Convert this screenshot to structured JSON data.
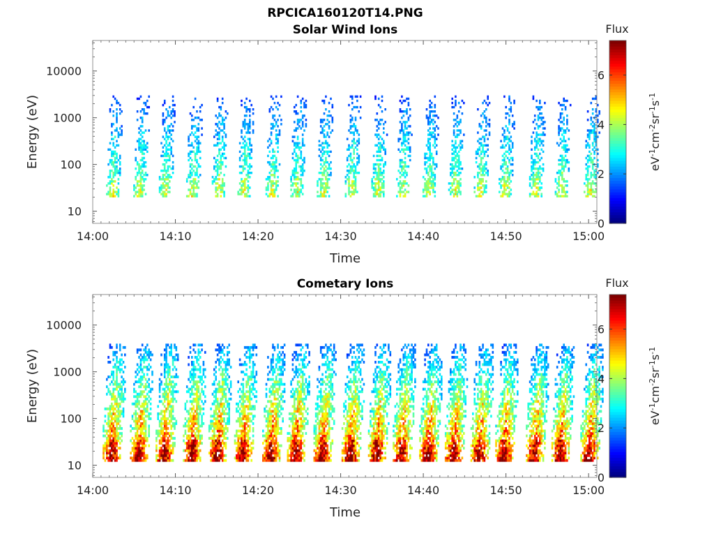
{
  "figure_title": "RPCICA160120T14.PNG",
  "chart_data": [
    {
      "type": "heatmap",
      "title": "Solar Wind Ions",
      "xlabel": "Time",
      "ylabel": "Energy (eV)",
      "x_range": [
        "14:00",
        "15:01"
      ],
      "x_ticks": [
        "14:00",
        "14:10",
        "14:20",
        "14:30",
        "14:40",
        "14:50",
        "15:00"
      ],
      "y_scale": "log",
      "y_range": [
        5.5,
        45000
      ],
      "y_ticks": [
        "10",
        "100",
        "1000",
        "10000"
      ],
      "colorbar": {
        "title": "Flux",
        "label": "eV-1cm-2sr-1s-1",
        "range": [
          0,
          7.4
        ],
        "ticks": [
          "0",
          "2",
          "4",
          "6"
        ],
        "colormap": "jet"
      },
      "approx_peak_flux": 5.5,
      "burst_times_min": [
        2.5,
        5.8,
        8.9,
        12.2,
        15.3,
        18.4,
        21.8,
        24.8,
        28.0,
        31.4,
        34.6,
        37.6,
        40.8,
        43.9,
        47.0,
        50.0,
        53.7,
        56.8,
        60.3
      ],
      "burst_energy_range_eV": [
        20,
        3000
      ]
    },
    {
      "type": "heatmap",
      "title": "Cometary Ions",
      "xlabel": "Time",
      "ylabel": "Energy (eV)",
      "x_range": [
        "14:00",
        "15:01"
      ],
      "x_ticks": [
        "14:00",
        "14:10",
        "14:20",
        "14:30",
        "14:40",
        "14:50",
        "15:00"
      ],
      "y_scale": "log",
      "y_range": [
        5.5,
        45000
      ],
      "y_ticks": [
        "10",
        "100",
        "1000",
        "10000"
      ],
      "colorbar": {
        "title": "Flux",
        "label": "eV-1cm-2sr-1s-1",
        "range": [
          0,
          7.4
        ],
        "ticks": [
          "0",
          "2",
          "4",
          "6"
        ],
        "colormap": "jet"
      },
      "approx_peak_flux": 7,
      "burst_times_min": [
        2.5,
        5.8,
        8.9,
        12.2,
        15.3,
        18.4,
        21.8,
        24.8,
        28.0,
        31.4,
        34.6,
        37.6,
        40.8,
        43.9,
        47.0,
        50.0,
        53.7,
        56.8,
        60.3
      ],
      "burst_energy_range_eV": [
        12,
        4000
      ]
    }
  ]
}
